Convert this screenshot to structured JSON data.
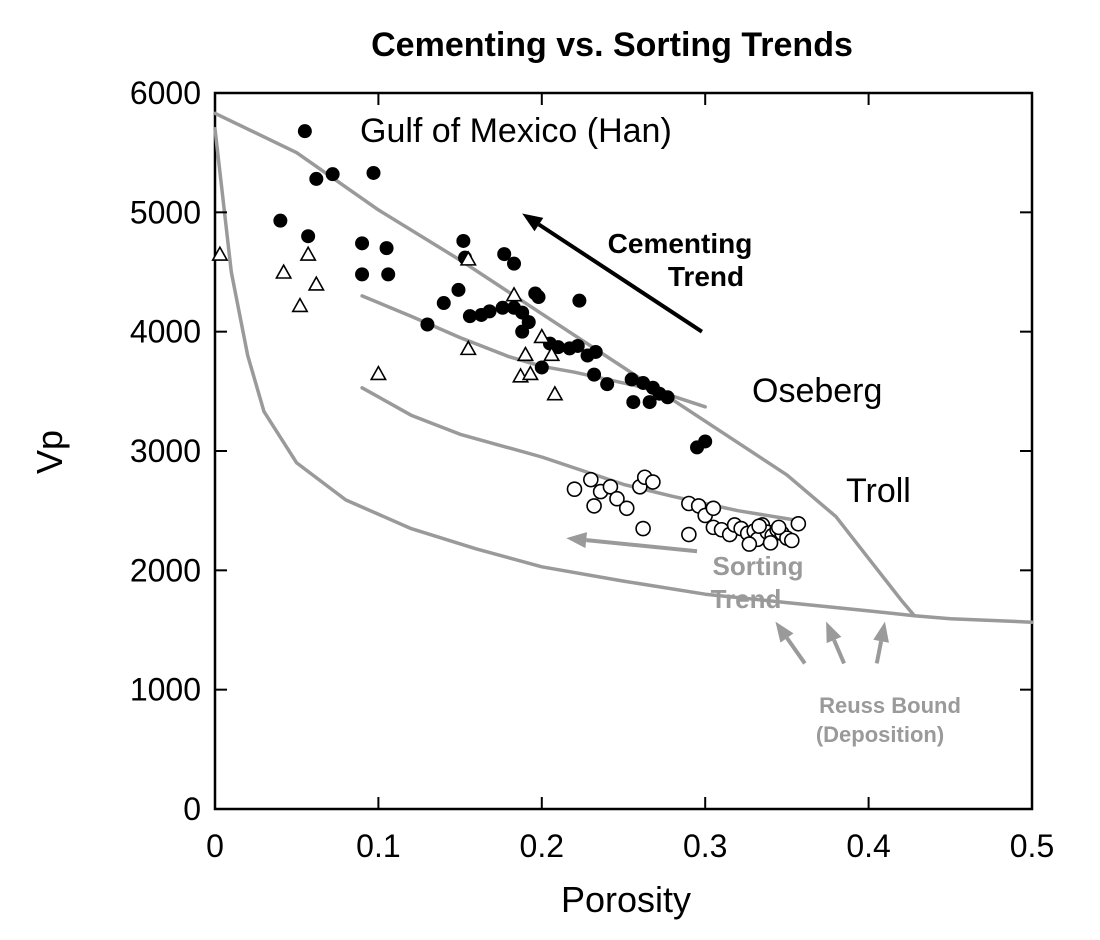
{
  "chart_data": {
    "type": "scatter",
    "title": "Cementing vs. Sorting Trends",
    "xlabel": "Porosity",
    "ylabel": "Vp",
    "xlim": [
      0,
      0.5
    ],
    "ylim": [
      0,
      6000
    ],
    "x_ticks": [
      "0",
      "0.1",
      "0.2",
      "0.3",
      "0.4",
      "0.5"
    ],
    "y_ticks": [
      "0",
      "1000",
      "2000",
      "3000",
      "4000",
      "5000",
      "6000"
    ],
    "grid": false,
    "series": [
      {
        "name": "Gulf of Mexico (Han)",
        "marker": "filled-circle",
        "color": "#000000",
        "points": [
          [
            0.055,
            5680
          ],
          [
            0.062,
            5280
          ],
          [
            0.072,
            5320
          ],
          [
            0.097,
            5330
          ],
          [
            0.04,
            4930
          ],
          [
            0.057,
            4800
          ],
          [
            0.09,
            4740
          ],
          [
            0.105,
            4700
          ],
          [
            0.09,
            4480
          ],
          [
            0.106,
            4480
          ],
          [
            0.152,
            4760
          ],
          [
            0.153,
            4620
          ],
          [
            0.177,
            4650
          ],
          [
            0.183,
            4570
          ],
          [
            0.196,
            4320
          ],
          [
            0.198,
            4290
          ],
          [
            0.14,
            4240
          ],
          [
            0.149,
            4350
          ],
          [
            0.156,
            4130
          ],
          [
            0.163,
            4140
          ],
          [
            0.168,
            4170
          ],
          [
            0.176,
            4200
          ],
          [
            0.183,
            4200
          ],
          [
            0.188,
            4160
          ],
          [
            0.192,
            4080
          ],
          [
            0.188,
            4000
          ],
          [
            0.13,
            4060
          ],
          [
            0.223,
            4260
          ],
          [
            0.205,
            3900
          ],
          [
            0.21,
            3870
          ],
          [
            0.217,
            3860
          ],
          [
            0.222,
            3880
          ],
          [
            0.228,
            3800
          ],
          [
            0.233,
            3830
          ],
          [
            0.2,
            3700
          ],
          [
            0.232,
            3640
          ],
          [
            0.24,
            3560
          ],
          [
            0.255,
            3600
          ],
          [
            0.262,
            3570
          ],
          [
            0.268,
            3530
          ],
          [
            0.272,
            3480
          ],
          [
            0.277,
            3450
          ],
          [
            0.256,
            3410
          ],
          [
            0.266,
            3410
          ],
          [
            0.295,
            3030
          ],
          [
            0.3,
            3080
          ]
        ]
      },
      {
        "name": "Oseberg",
        "marker": "open-triangle",
        "color": "#000000",
        "points": [
          [
            0.003,
            4640
          ],
          [
            0.042,
            4490
          ],
          [
            0.057,
            4640
          ],
          [
            0.062,
            4390
          ],
          [
            0.052,
            4210
          ],
          [
            0.1,
            3640
          ],
          [
            0.155,
            4600
          ],
          [
            0.155,
            3850
          ],
          [
            0.183,
            4300
          ],
          [
            0.19,
            3800
          ],
          [
            0.2,
            3950
          ],
          [
            0.187,
            3620
          ],
          [
            0.193,
            3640
          ],
          [
            0.206,
            3800
          ],
          [
            0.208,
            3470
          ]
        ]
      },
      {
        "name": "Troll",
        "marker": "open-circle",
        "color": "#000000",
        "points": [
          [
            0.22,
            2680
          ],
          [
            0.23,
            2760
          ],
          [
            0.232,
            2540
          ],
          [
            0.236,
            2660
          ],
          [
            0.242,
            2700
          ],
          [
            0.246,
            2600
          ],
          [
            0.252,
            2520
          ],
          [
            0.26,
            2700
          ],
          [
            0.263,
            2780
          ],
          [
            0.268,
            2740
          ],
          [
            0.262,
            2350
          ],
          [
            0.29,
            2300
          ],
          [
            0.29,
            2560
          ],
          [
            0.296,
            2540
          ],
          [
            0.3,
            2460
          ],
          [
            0.305,
            2520
          ],
          [
            0.305,
            2360
          ],
          [
            0.31,
            2340
          ],
          [
            0.315,
            2300
          ],
          [
            0.318,
            2380
          ],
          [
            0.322,
            2350
          ],
          [
            0.326,
            2310
          ],
          [
            0.33,
            2330
          ],
          [
            0.332,
            2260
          ],
          [
            0.335,
            2380
          ],
          [
            0.338,
            2320
          ],
          [
            0.341,
            2290
          ],
          [
            0.344,
            2340
          ],
          [
            0.347,
            2310
          ],
          [
            0.35,
            2270
          ],
          [
            0.353,
            2250
          ],
          [
            0.357,
            2390
          ],
          [
            0.34,
            2230
          ],
          [
            0.327,
            2220
          ],
          [
            0.333,
            2370
          ],
          [
            0.345,
            2360
          ]
        ]
      }
    ],
    "curves": [
      {
        "color": "#9a9a9a",
        "points": [
          [
            0,
            5830
          ],
          [
            0.05,
            5500
          ],
          [
            0.1,
            5020
          ],
          [
            0.15,
            4600
          ],
          [
            0.2,
            4150
          ],
          [
            0.25,
            3700
          ],
          [
            0.3,
            3250
          ],
          [
            0.35,
            2800
          ],
          [
            0.38,
            2450
          ],
          [
            0.4,
            2100
          ],
          [
            0.42,
            1750
          ],
          [
            0.428,
            1620
          ]
        ]
      },
      {
        "color": "#9a9a9a",
        "points": [
          [
            0.09,
            4300
          ],
          [
            0.12,
            4130
          ],
          [
            0.15,
            3950
          ],
          [
            0.18,
            3790
          ],
          [
            0.2,
            3710
          ],
          [
            0.22,
            3660
          ],
          [
            0.24,
            3600
          ],
          [
            0.26,
            3540
          ],
          [
            0.28,
            3460
          ],
          [
            0.3,
            3370
          ]
        ]
      },
      {
        "color": "#9a9a9a",
        "points": [
          [
            0.09,
            3530
          ],
          [
            0.12,
            3300
          ],
          [
            0.15,
            3140
          ],
          [
            0.2,
            2950
          ],
          [
            0.25,
            2720
          ],
          [
            0.28,
            2620
          ],
          [
            0.32,
            2500
          ],
          [
            0.36,
            2410
          ]
        ]
      },
      {
        "color": "#9a9a9a",
        "points": [
          [
            0,
            5700
          ],
          [
            0.01,
            4500
          ],
          [
            0.02,
            3800
          ],
          [
            0.03,
            3330
          ],
          [
            0.05,
            2900
          ],
          [
            0.08,
            2590
          ],
          [
            0.12,
            2350
          ],
          [
            0.16,
            2180
          ],
          [
            0.2,
            2030
          ],
          [
            0.25,
            1910
          ],
          [
            0.3,
            1800
          ],
          [
            0.35,
            1730
          ],
          [
            0.4,
            1660
          ],
          [
            0.428,
            1620
          ],
          [
            0.45,
            1595
          ],
          [
            0.5,
            1565
          ]
        ]
      }
    ],
    "annotations": {
      "gulf_label": "Gulf of Mexico (Han)",
      "cementing_label_1": "Cementing",
      "cementing_label_2": "Trend",
      "oseberg_label": "Oseberg",
      "troll_label": "Troll",
      "sorting_label_1": "Sorting",
      "sorting_label_2": "Trend",
      "reuss_label_1": "Reuss Bound",
      "reuss_label_2": "(Deposition)"
    },
    "arrows": [
      {
        "color": "#000000",
        "from": [
          0.298,
          4000
        ],
        "to": [
          0.188,
          4990
        ]
      },
      {
        "color": "#9a9a9a",
        "from": [
          0.295,
          2160
        ],
        "to": [
          0.215,
          2270
        ]
      },
      {
        "color": "#9a9a9a",
        "from": [
          0.361,
          1220
        ],
        "to": [
          0.343,
          1570
        ]
      },
      {
        "color": "#9a9a9a",
        "from": [
          0.385,
          1220
        ],
        "to": [
          0.374,
          1570
        ]
      },
      {
        "color": "#9a9a9a",
        "from": [
          0.405,
          1220
        ],
        "to": [
          0.41,
          1570
        ]
      }
    ]
  }
}
